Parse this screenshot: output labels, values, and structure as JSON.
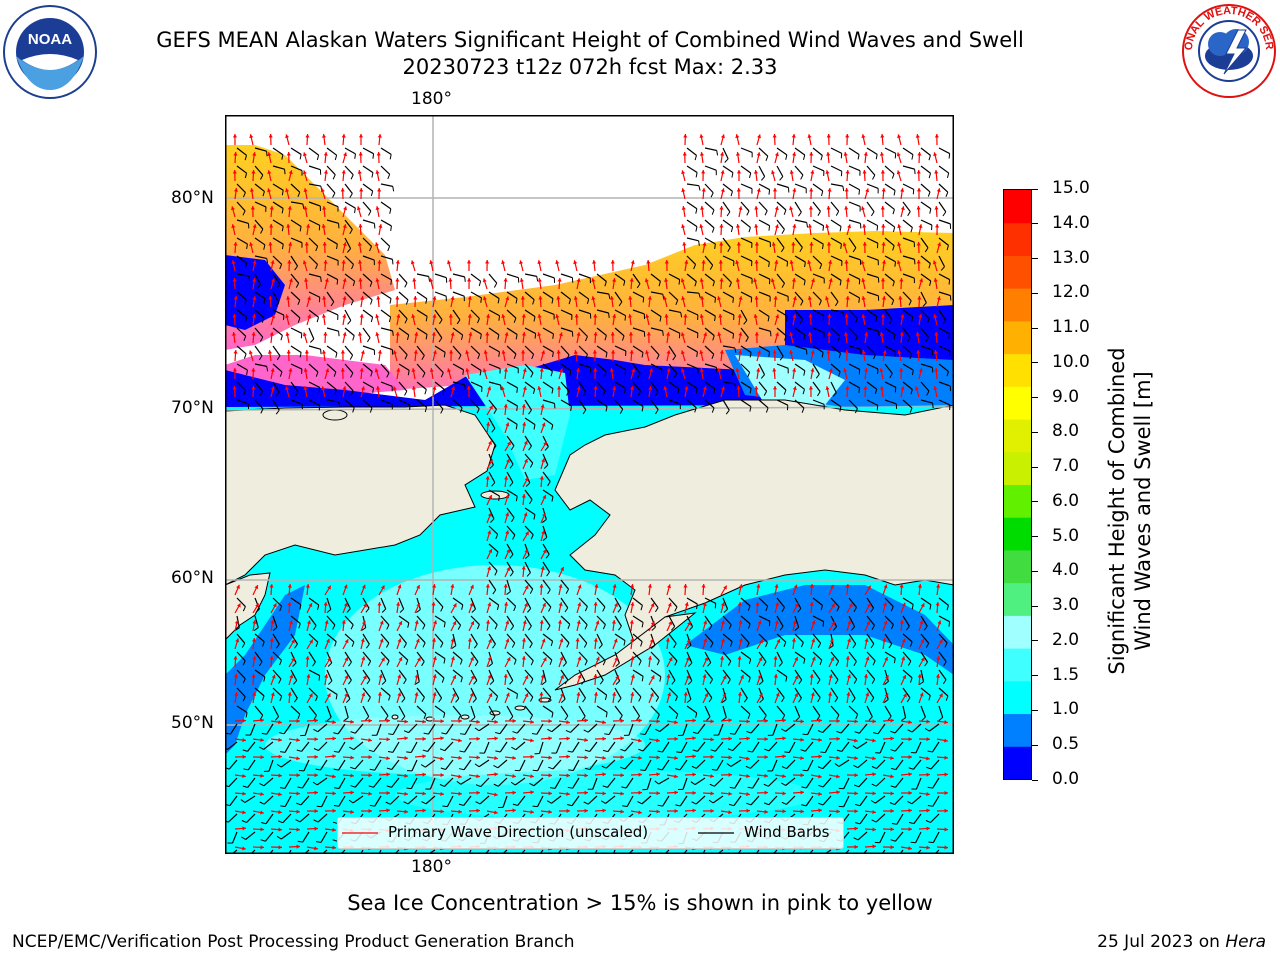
{
  "title": {
    "line1": "GEFS MEAN Alaskan Waters Significant Height of Combined Wind Waves and Swell",
    "line2": "20230723 t12z 072h fcst   Max: 2.33"
  },
  "logos": {
    "left": {
      "icon": "noaa-logo-icon",
      "text": "NOAA"
    },
    "right": {
      "icon": "national-weather-service-logo-icon",
      "text": "NATIONAL WEATHER SERVICE"
    }
  },
  "map": {
    "lon_labels": {
      "top": "180°",
      "bottom": "180°"
    },
    "lat_labels": [
      "80°N",
      "70°N",
      "60°N",
      "50°N"
    ],
    "colors": {
      "land": "#efedde",
      "coast": "#000000",
      "grid": "#b4b4b4",
      "wave_arrow": "#ff0000",
      "wind_barb": "#000000"
    }
  },
  "colorbar": {
    "ticks": [
      "15.0",
      "14.0",
      "13.0",
      "12.0",
      "11.0",
      "10.0",
      "9.0",
      "8.0",
      "7.0",
      "6.0",
      "5.0",
      "4.0",
      "3.0",
      "2.0",
      "1.5",
      "1.0",
      "0.5",
      "0.0"
    ],
    "colors": [
      "#0000ff",
      "#0080ff",
      "#00ffff",
      "#40ffff",
      "#a0ffff",
      "#50f080",
      "#40dc40",
      "#00dc00",
      "#60f000",
      "#c8f000",
      "#e0f000",
      "#ffff00",
      "#ffe000",
      "#ffb000",
      "#ff8000",
      "#ff5000",
      "#ff3000",
      "#ff0000"
    ],
    "label_line1": "Significant Height of Combined",
    "label_line2": "Wind Waves and Swell [m]"
  },
  "legend": {
    "wave": "Primary Wave Direction (unscaled)",
    "wind": "Wind Barbs"
  },
  "caption": "Sea Ice Concentration > 15% is shown in pink to yellow",
  "footer": {
    "left": "NCEP/EMC/Verification Post Processing Product Generation Branch",
    "right_date": "25 Jul 2023 on ",
    "right_host": "Hera"
  }
}
